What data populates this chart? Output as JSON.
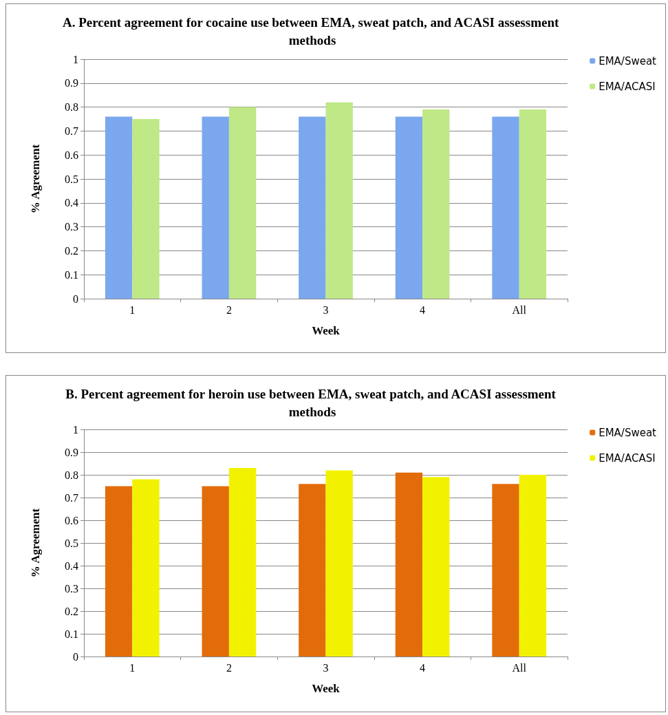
{
  "chart_data": [
    {
      "type": "bar",
      "title": "A. Percent agreement for cocaine use between EMA, sweat patch, and ACASI assessment methods",
      "xlabel": "Week",
      "ylabel": "% Agreement",
      "categories": [
        "1",
        "2",
        "3",
        "4",
        "All"
      ],
      "series": [
        {
          "name": "EMA/Sweat",
          "color": "#7ba7ef",
          "values": [
            0.76,
            0.76,
            0.76,
            0.76,
            0.76
          ]
        },
        {
          "name": "EMA/ACASI",
          "color": "#bfe887",
          "values": [
            0.75,
            0.8,
            0.82,
            0.79,
            0.79
          ]
        }
      ],
      "ylim": [
        0,
        1
      ],
      "yticks": [
        0,
        0.1,
        0.2,
        0.3,
        0.4,
        0.5,
        0.6,
        0.7,
        0.8,
        0.9,
        1
      ],
      "grid": "y",
      "legend": "right"
    },
    {
      "type": "bar",
      "title": "B. Percent agreement for heroin use between EMA, sweat patch, and ACASI assessment methods",
      "xlabel": "Week",
      "ylabel": "% Agreement",
      "categories": [
        "1",
        "2",
        "3",
        "4",
        "All"
      ],
      "series": [
        {
          "name": "EMA/Sweat",
          "color": "#e36c0a",
          "values": [
            0.75,
            0.75,
            0.76,
            0.81,
            0.76
          ]
        },
        {
          "name": "EMA/ACASI",
          "color": "#f2f200",
          "values": [
            0.78,
            0.83,
            0.82,
            0.79,
            0.8
          ]
        }
      ],
      "ylim": [
        0,
        1
      ],
      "yticks": [
        0,
        0.1,
        0.2,
        0.3,
        0.4,
        0.5,
        0.6,
        0.7,
        0.8,
        0.9,
        1
      ],
      "grid": "y",
      "legend": "right"
    }
  ]
}
